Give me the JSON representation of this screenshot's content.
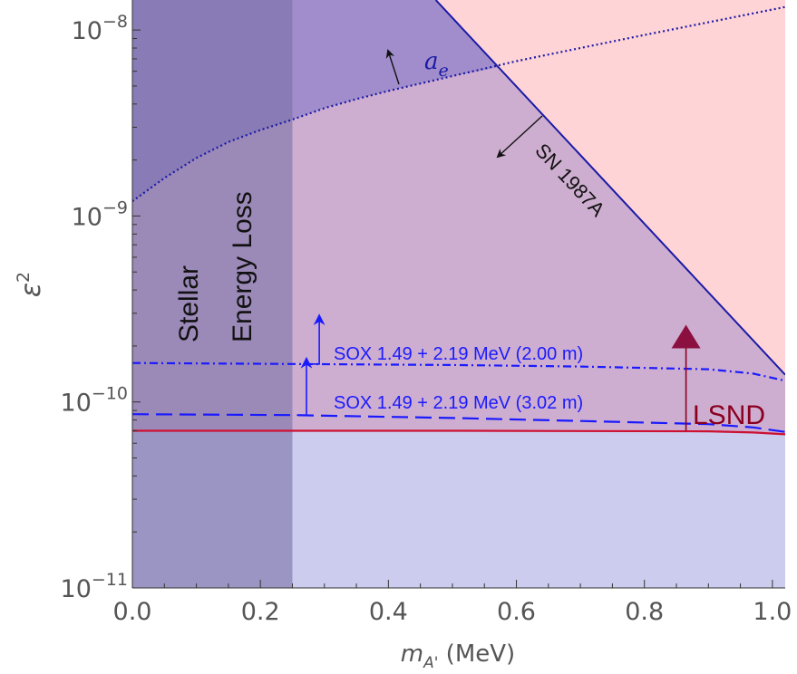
{
  "chart_data": {
    "type": "line",
    "title": "",
    "xlabel": {
      "main": "m",
      "sub": "A'",
      "unit": " (MeV)"
    },
    "ylabel": {
      "main": "ε",
      "sup": "2"
    },
    "xlim": [
      0.0,
      1.02
    ],
    "ylim": [
      1e-11,
      1.45e-08
    ],
    "yscale": "log",
    "x_ticks": [
      {
        "value": 0.0,
        "label": "0.0"
      },
      {
        "value": 0.2,
        "label": "0.2"
      },
      {
        "value": 0.4,
        "label": "0.4"
      },
      {
        "value": 0.6,
        "label": "0.6"
      },
      {
        "value": 0.8,
        "label": "0.8"
      },
      {
        "value": 1.0,
        "label": "1.0"
      }
    ],
    "y_ticks": [
      {
        "value": 1e-11,
        "base": "10",
        "exp": "−11"
      },
      {
        "value": 1e-10,
        "base": "10",
        "exp": "−10"
      },
      {
        "value": 1e-09,
        "base": "10",
        "exp": "−9"
      },
      {
        "value": 1e-08,
        "base": "10",
        "exp": "−8"
      }
    ],
    "grid": false,
    "colors": {
      "sox": "#1a1aff",
      "lsnd": "#cc1133",
      "lsnd_text": "#8b0020",
      "sn": "#1a1aa6",
      "ae": "#1a1aa6",
      "stellar_fill": "#7a6fa8",
      "lsnd_fill": "#ccccee",
      "main_fill": "#ceaed0",
      "sn_fill": "#ffd4d6",
      "ae_fill": "#a18dcb"
    },
    "regions": {
      "stellar": {
        "x_max": 0.25,
        "label_line1": "Stellar",
        "label_line2": "Energy Loss"
      },
      "lsnd": {
        "label": "LSND",
        "arrow_x": 0.865,
        "arrow_to_y": 2.6e-10
      },
      "sn": {
        "label": "SN 1987A"
      },
      "ae": {
        "label": "a",
        "label_sub": "e"
      }
    },
    "series": [
      {
        "name": "SOX 1.49 + 2.19 MeV (2.00 m)",
        "style": "dash-dot",
        "x": [
          0.0,
          0.25,
          0.5,
          0.7,
          0.9,
          0.97,
          1.02
        ],
        "y": [
          1.62e-10,
          1.6e-10,
          1.58e-10,
          1.55e-10,
          1.5e-10,
          1.42e-10,
          1.3e-10
        ],
        "arrow_x": 0.292,
        "arrow_to_y": 2.9e-10
      },
      {
        "name": "SOX 1.49 + 2.19 MeV (3.02 m)",
        "style": "dashed",
        "x": [
          0.0,
          0.25,
          0.5,
          0.7,
          0.9,
          0.97,
          1.02
        ],
        "y": [
          8.6e-11,
          8.5e-11,
          8.2e-11,
          7.9e-11,
          7.6e-11,
          7.3e-11,
          6.9e-11
        ],
        "arrow_x": 0.272,
        "arrow_to_y": 1.7e-10
      },
      {
        "name": "LSND",
        "style": "solid",
        "x": [
          0.0,
          0.5,
          0.9,
          0.97,
          1.02
        ],
        "y": [
          7e-11,
          7e-11,
          6.95e-11,
          6.85e-11,
          6.7e-11
        ]
      },
      {
        "name": "SN 1987A",
        "style": "solid",
        "x": [
          0.474,
          1.02
        ],
        "y": [
          1.45e-08,
          1.4e-10
        ]
      },
      {
        "name": "a_e",
        "style": "dotted",
        "x": [
          0.0,
          0.05,
          0.1,
          0.15,
          0.2,
          0.25,
          0.3,
          0.35,
          0.4,
          0.5,
          0.6,
          0.7,
          0.8,
          0.9,
          1.02
        ],
        "y": [
          1.2e-09,
          1.6e-09,
          2.05e-09,
          2.5e-09,
          2.9e-09,
          3.3e-09,
          3.8e-09,
          4.25e-09,
          4.7e-09,
          5.65e-09,
          6.8e-09,
          8e-09,
          9.4e-09,
          1.1e-08,
          1.33e-08
        ]
      }
    ]
  }
}
